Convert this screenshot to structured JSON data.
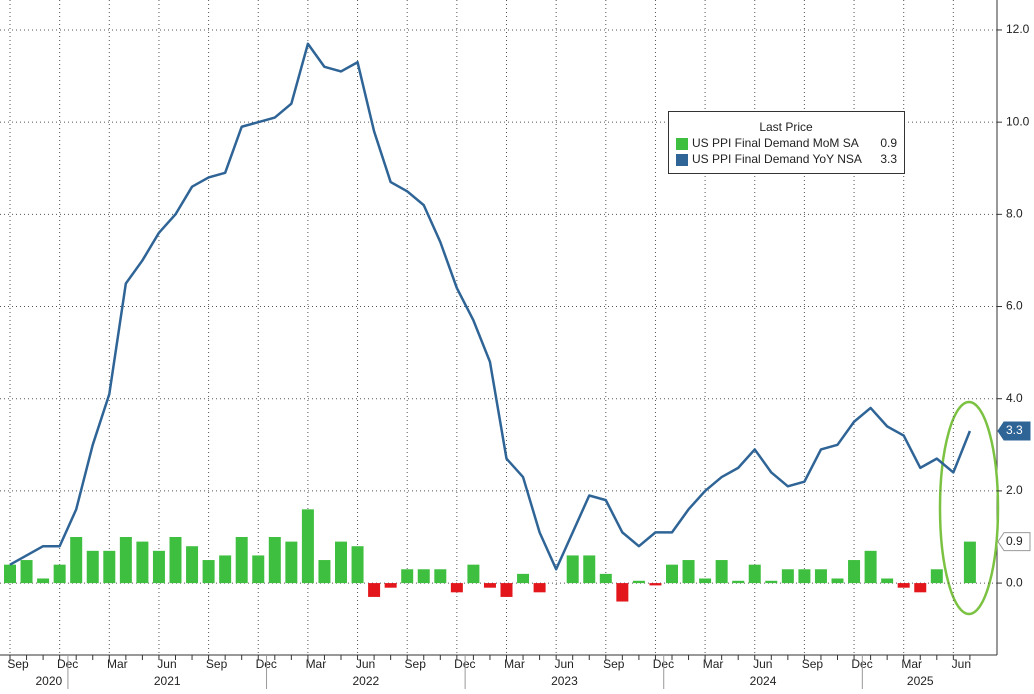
{
  "chart_data": {
    "type": "bar-line",
    "categories": [
      "Sep",
      null,
      null,
      "Dec",
      null,
      null,
      "Mar",
      null,
      null,
      "Jun",
      null,
      null,
      "Sep",
      null,
      null,
      "Dec",
      null,
      null,
      "Mar",
      null,
      null,
      "Jun",
      null,
      null,
      "Sep",
      null,
      null,
      "Dec",
      null,
      null,
      "Mar",
      null,
      null,
      "Jun",
      null,
      null,
      "Sep",
      null,
      null,
      "Dec",
      null,
      null,
      "Mar",
      null,
      null,
      "Jun",
      null,
      null,
      "Sep",
      null,
      null,
      "Dec",
      null,
      null,
      "Mar",
      null,
      null,
      "Jun",
      null
    ],
    "years": [
      "2020",
      "2021",
      "2022",
      "2023",
      "2024",
      "2025"
    ],
    "legend_title": "Last Price",
    "series": [
      {
        "name": "US PPI Final Demand MoM SA",
        "kind": "bar",
        "color": "#3fbf3f",
        "negative_color": "#e3161b",
        "values": [
          0.4,
          0.5,
          0.1,
          0.4,
          1.0,
          0.7,
          0.7,
          1.0,
          0.9,
          0.7,
          1.0,
          0.8,
          0.5,
          0.6,
          1.0,
          0.6,
          1.0,
          0.9,
          1.6,
          0.5,
          0.9,
          0.8,
          -0.3,
          -0.1,
          0.3,
          0.3,
          0.3,
          -0.2,
          0.4,
          -0.1,
          -0.3,
          0.2,
          -0.2,
          0.0,
          0.6,
          0.6,
          0.2,
          -0.4,
          0.05,
          -0.05,
          0.4,
          0.5,
          0.1,
          0.5,
          0.05,
          0.4,
          0.05,
          0.3,
          0.3,
          0.3,
          0.1,
          0.5,
          0.7,
          0.1,
          -0.1,
          -0.2,
          0.3,
          0.0,
          0.9
        ]
      },
      {
        "name": "US PPI Final Demand YoY NSA",
        "kind": "line",
        "color": "#2f6496",
        "values": [
          0.4,
          0.6,
          0.8,
          0.8,
          1.6,
          3.0,
          4.1,
          6.5,
          7.0,
          7.6,
          8.0,
          8.6,
          8.8,
          8.9,
          9.9,
          10.0,
          10.1,
          10.4,
          11.7,
          11.2,
          11.1,
          11.3,
          9.8,
          8.7,
          8.5,
          8.2,
          7.4,
          6.4,
          5.7,
          4.8,
          2.7,
          2.3,
          1.1,
          0.3,
          1.1,
          1.9,
          1.8,
          1.1,
          0.8,
          1.1,
          1.1,
          1.6,
          2.0,
          2.3,
          2.5,
          2.9,
          2.4,
          2.1,
          2.2,
          2.9,
          3.0,
          3.5,
          3.8,
          3.4,
          3.2,
          2.5,
          2.7,
          2.4,
          3.3
        ]
      }
    ],
    "ylim": [
      -1.56,
      12.65
    ],
    "yticks": [
      {
        "value": 0,
        "label": "0.0"
      },
      {
        "value": 2,
        "label": "2.0"
      },
      {
        "value": 4,
        "label": "4.0"
      },
      {
        "value": 6,
        "label": "6.0"
      },
      {
        "value": 8,
        "label": "8.0"
      },
      {
        "value": 10,
        "label": "10.0"
      },
      {
        "value": 12,
        "label": "12.0"
      }
    ],
    "grid": true
  }
}
